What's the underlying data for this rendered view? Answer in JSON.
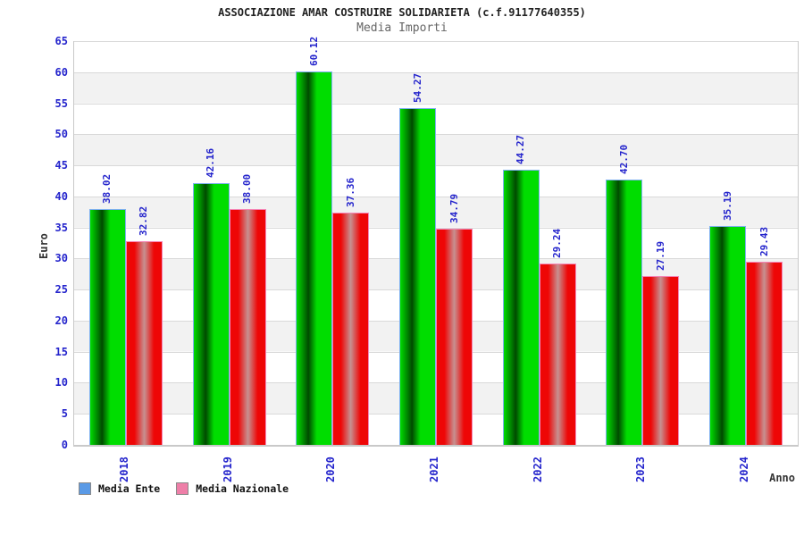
{
  "chart_data": {
    "type": "bar",
    "title": "ASSOCIAZIONE AMAR COSTRUIRE SOLIDARIETA (c.f.91177640355)",
    "subtitle": "Media Importi",
    "xlabel": "Anno",
    "ylabel": "Euro",
    "ylim": [
      0,
      65
    ],
    "ytick_step": 5,
    "grid": "horizontal-bands-alternating-white-gray",
    "legend_position": "bottom-left",
    "value_label_decimals": 2,
    "categories": [
      "2018",
      "2019",
      "2020",
      "2021",
      "2022",
      "2023",
      "2024"
    ],
    "series": [
      {
        "name": "Media Ente",
        "values": [
          38.02,
          42.16,
          60.12,
          54.27,
          44.27,
          42.7,
          35.19
        ]
      },
      {
        "name": "Media Nazionale",
        "values": [
          32.82,
          38.0,
          37.36,
          34.79,
          29.24,
          27.19,
          29.43
        ]
      }
    ]
  },
  "colors": {
    "label_blue": "#2424cc",
    "bar_ente_main": "#00dd00",
    "bar_ente_dark": "#004a00",
    "bar_ente_border": "#7fb0f0",
    "bar_nazionale_main": "#ee0606",
    "bar_nazionale_light": "#c69191",
    "bar_nazionale_border": "#f585b5",
    "legend_ente_swatch": "#5a9ae6",
    "legend_nazionale_swatch": "#ee7fa8",
    "band_gray": "#f2f2f2",
    "gridline": "#d9d9d9",
    "axis_line": "#c9c9c9",
    "title_color": "#222222",
    "subtitle_color": "#666666"
  }
}
